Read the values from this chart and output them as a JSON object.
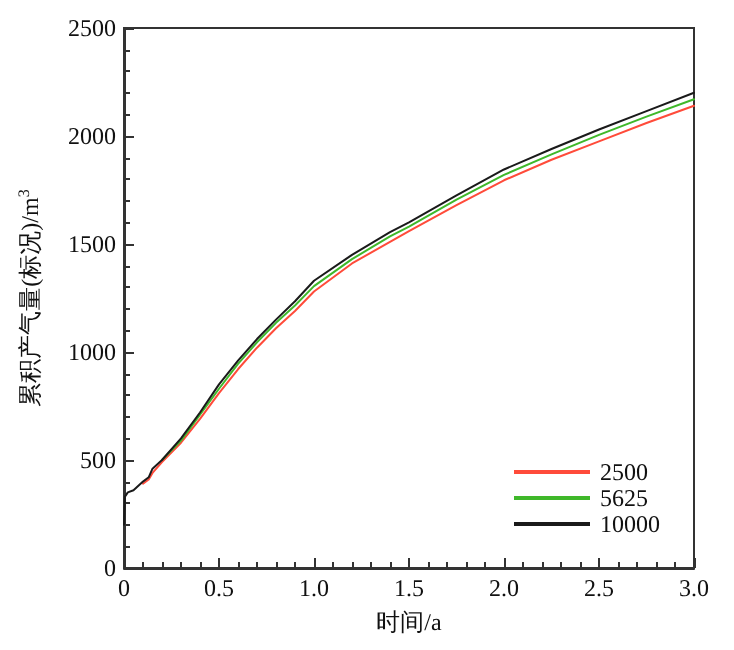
{
  "chart_data": {
    "type": "line",
    "xlabel": "时间/a",
    "ylabel": "累积产气量(标况)/m$^{3}$",
    "x": [
      0,
      0.005,
      0.02,
      0.05,
      0.1,
      0.13,
      0.15,
      0.2,
      0.3,
      0.4,
      0.5,
      0.6,
      0.7,
      0.8,
      0.9,
      1.0,
      1.2,
      1.4,
      1.5,
      1.75,
      2.0,
      2.25,
      2.5,
      2.75,
      3.0
    ],
    "series": [
      {
        "name": "2500",
        "color": "#ff4b3a",
        "values": [
          null,
          null,
          null,
          null,
          390,
          410,
          440,
          490,
          580,
          690,
          810,
          920,
          1020,
          1110,
          1190,
          1280,
          1410,
          1510,
          1560,
          1680,
          1795,
          1890,
          1975,
          2060,
          2140
        ]
      },
      {
        "name": "5625",
        "color": "#3fb82a",
        "values": [
          null,
          null,
          null,
          null,
          null,
          null,
          null,
          500,
          590,
          710,
          830,
          945,
          1045,
          1135,
          1215,
          1305,
          1430,
          1535,
          1580,
          1705,
          1820,
          1915,
          2005,
          2090,
          2170
        ]
      },
      {
        "name": "10000",
        "color": "#1a1a1a",
        "values": [
          200,
          330,
          350,
          360,
          400,
          420,
          460,
          500,
          600,
          720,
          850,
          960,
          1060,
          1150,
          1235,
          1330,
          1450,
          1555,
          1600,
          1725,
          1845,
          1940,
          2030,
          2115,
          2200
        ]
      }
    ],
    "xlim": [
      0,
      3.0
    ],
    "xticks": [
      {
        "value": 0,
        "label": "0"
      },
      {
        "value": 0.5,
        "label": "0.5"
      },
      {
        "value": 1,
        "label": "1.0"
      },
      {
        "value": 1.5,
        "label": "1.5"
      },
      {
        "value": 2,
        "label": "2.0"
      },
      {
        "value": 2.5,
        "label": "2.5"
      },
      {
        "value": 3,
        "label": "3.0"
      }
    ],
    "ylim": [
      0,
      2500
    ],
    "yticks": [
      0,
      500,
      1000,
      1500,
      2000,
      2500
    ],
    "legend": "bottom right",
    "grid": false,
    "marker": "none",
    "line_style": "solid"
  }
}
